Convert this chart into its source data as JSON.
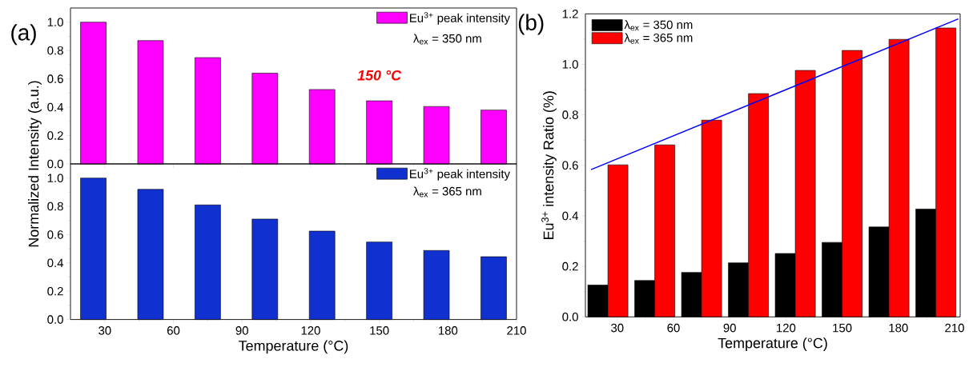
{
  "chart_data": [
    {
      "type": "bar",
      "x": [
        25,
        50,
        75,
        100,
        125,
        150,
        175,
        200
      ],
      "series": [
        {
          "name": "Eu$^{3+}$ peak intensity",
          "color": "#ff00ff",
          "values": [
            1.0,
            0.87,
            0.75,
            0.64,
            0.525,
            0.445,
            0.405,
            0.38
          ]
        }
      ],
      "xlim": [
        15,
        210
      ],
      "xticks": [
        30,
        60,
        90,
        120,
        150,
        180,
        210
      ],
      "ylim": [
        0,
        1.1
      ],
      "yticks": [
        {
          "value": 0,
          "label": "0.0"
        },
        {
          "value": 0.2,
          "label": "0.2"
        },
        {
          "value": 0.4,
          "label": "0.4"
        },
        {
          "value": 0.6,
          "label": "0.6"
        },
        {
          "value": 0.8,
          "label": "0.8"
        },
        {
          "value": 1,
          "label": "1.0"
        }
      ],
      "ylabel": "Normalized Intensity (a.u.)",
      "legend": "top right",
      "tick_labels": "y",
      "annotations": [
        "(a)",
        "λ$_{ex}$ = 350 nm",
        {
          "text": "150 °C",
          "x": 150,
          "y": 0.445
        }
      ]
    },
    {
      "type": "bar",
      "x": [
        25,
        50,
        75,
        100,
        125,
        150,
        175,
        200
      ],
      "series": [
        {
          "name": "Eu$^{3+}$ peak intensity",
          "color": "#1030d0",
          "values": [
            1.0,
            0.92,
            0.81,
            0.71,
            0.625,
            0.548,
            0.488,
            0.444
          ]
        }
      ],
      "xlim": [
        15,
        210
      ],
      "xticks": [
        30,
        60,
        90,
        120,
        150,
        180,
        210
      ],
      "ylim": [
        0,
        1.1
      ],
      "yticks": [
        {
          "value": 0,
          "label": "0.0"
        },
        {
          "value": 0.2,
          "label": "0.2"
        },
        {
          "value": 0.4,
          "label": "0.4"
        },
        {
          "value": 0.6,
          "label": "0.6"
        },
        {
          "value": 0.8,
          "label": "0.8"
        },
        {
          "value": 1,
          "label": "1.0"
        }
      ],
      "xlabel": "Temperature (°C)",
      "legend": "top right",
      "annotations": [
        "λ$_{ex}$ = 365 nm"
      ]
    },
    {
      "type": "bar",
      "x": [
        25,
        50,
        75,
        100,
        125,
        150,
        175,
        200
      ],
      "series": [
        {
          "name": "λ$_{ex}$ = 350 nm",
          "color": "#000000",
          "values": [
            0.126,
            0.144,
            0.176,
            0.214,
            0.251,
            0.295,
            0.356,
            0.427
          ]
        },
        {
          "name": "λ$_{ex}$ = 365 nm",
          "color": "#ff0000",
          "values": [
            0.602,
            0.681,
            0.779,
            0.884,
            0.976,
            1.055,
            1.099,
            1.144
          ]
        },
        {
          "type": "line",
          "color": "#0000ff",
          "x": [
            16,
            212
          ],
          "values": [
            0.583,
            1.18
          ]
        }
      ],
      "xlim": [
        13,
        213
      ],
      "xticks": [
        30,
        60,
        90,
        120,
        150,
        180,
        210
      ],
      "ylim": [
        0,
        1.2
      ],
      "yticks": [
        {
          "value": 0,
          "label": "0.0"
        },
        {
          "value": 0.2,
          "label": "0.2"
        },
        {
          "value": 0.4,
          "label": "0.4"
        },
        {
          "value": 0.6,
          "label": "0.6"
        },
        {
          "value": 0.8,
          "label": "0.8"
        },
        {
          "value": 1,
          "label": "1.0"
        },
        {
          "value": 1.2,
          "label": "1.2"
        }
      ],
      "xlabel": "Temperature (°C)",
      "ylabel": "Eu$^{3+}$ intensity Ratio (%)",
      "legend": "top left",
      "annotations": [
        "(b)"
      ]
    }
  ]
}
